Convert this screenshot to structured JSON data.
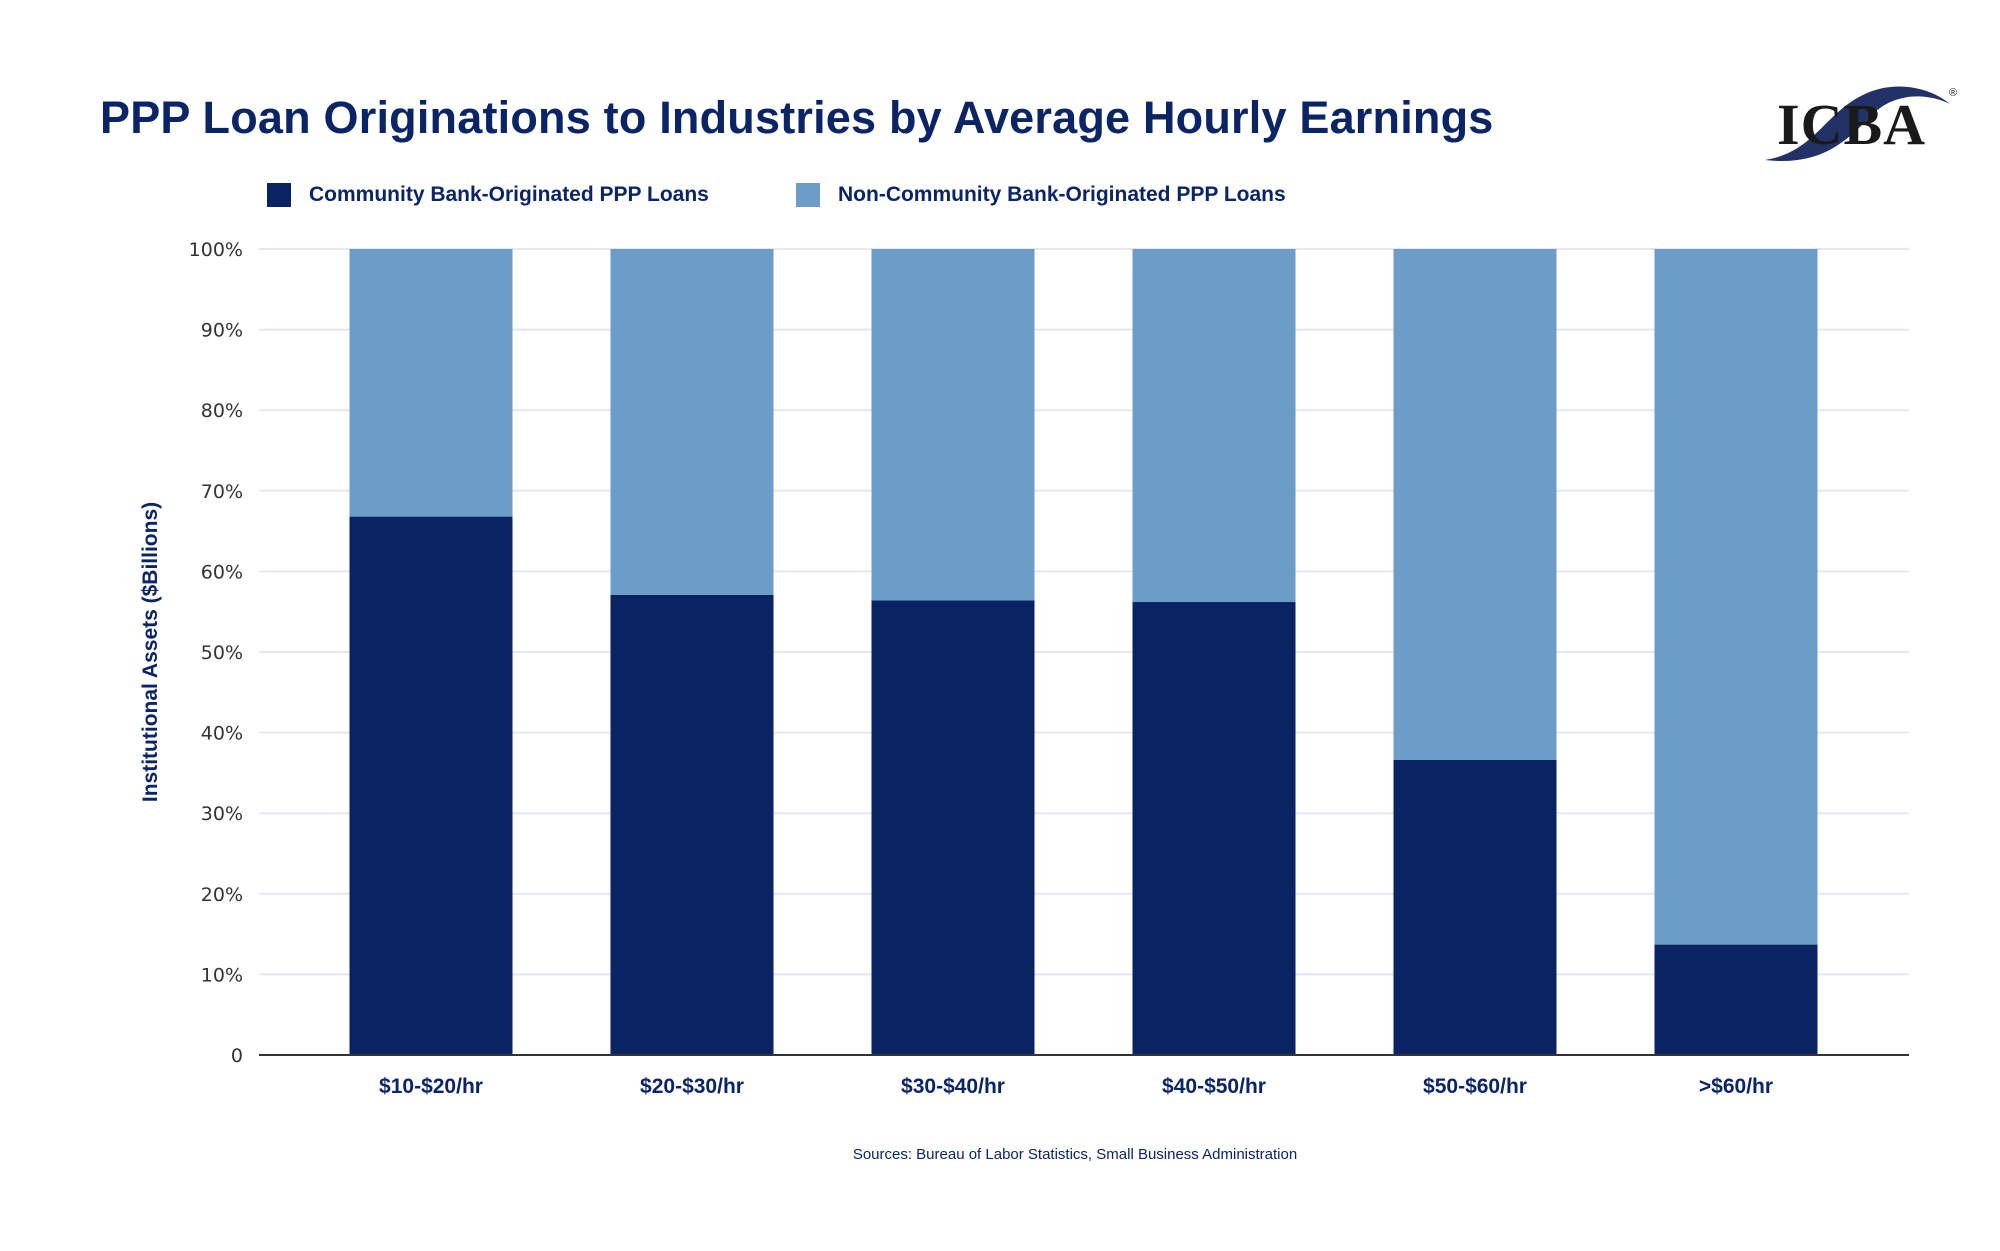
{
  "title": "PPP Loan Originations to Industries by Average Hourly Earnings",
  "logo": {
    "text": "ICBA",
    "colors": {
      "swoosh": "#233266",
      "letters": "#1a1a1a"
    }
  },
  "source": "Sources: Bureau of Labor Statistics, Small Business Administration",
  "chart_data": {
    "type": "bar",
    "stacked": true,
    "title": "PPP Loan Originations to Industries by Average Hourly Earnings",
    "xlabel": "",
    "ylabel": "Institutional Assets ($Billions)",
    "ylim": [
      0,
      100
    ],
    "yticks": [
      "0",
      "10%",
      "20%",
      "30%",
      "40%",
      "50%",
      "60%",
      "70%",
      "80%",
      "90%",
      "100%"
    ],
    "grid": true,
    "legend_placement": "top-left",
    "categories": [
      "$10-$20/hr",
      "$20-$30/hr",
      "$30-$40/hr",
      "$40-$50/hr",
      "$50-$60/hr",
      ">$60/hr"
    ],
    "series": [
      {
        "name": "Community Bank-Originated PPP Loans",
        "color": "#0a2363",
        "values": [
          66.8,
          57.1,
          56.4,
          56.2,
          36.6,
          13.7
        ]
      },
      {
        "name": "Non-Community Bank-Originated PPP Loans",
        "color": "#6b9dc8",
        "values": [
          33.2,
          42.9,
          43.6,
          43.8,
          63.4,
          86.3
        ]
      }
    ]
  }
}
